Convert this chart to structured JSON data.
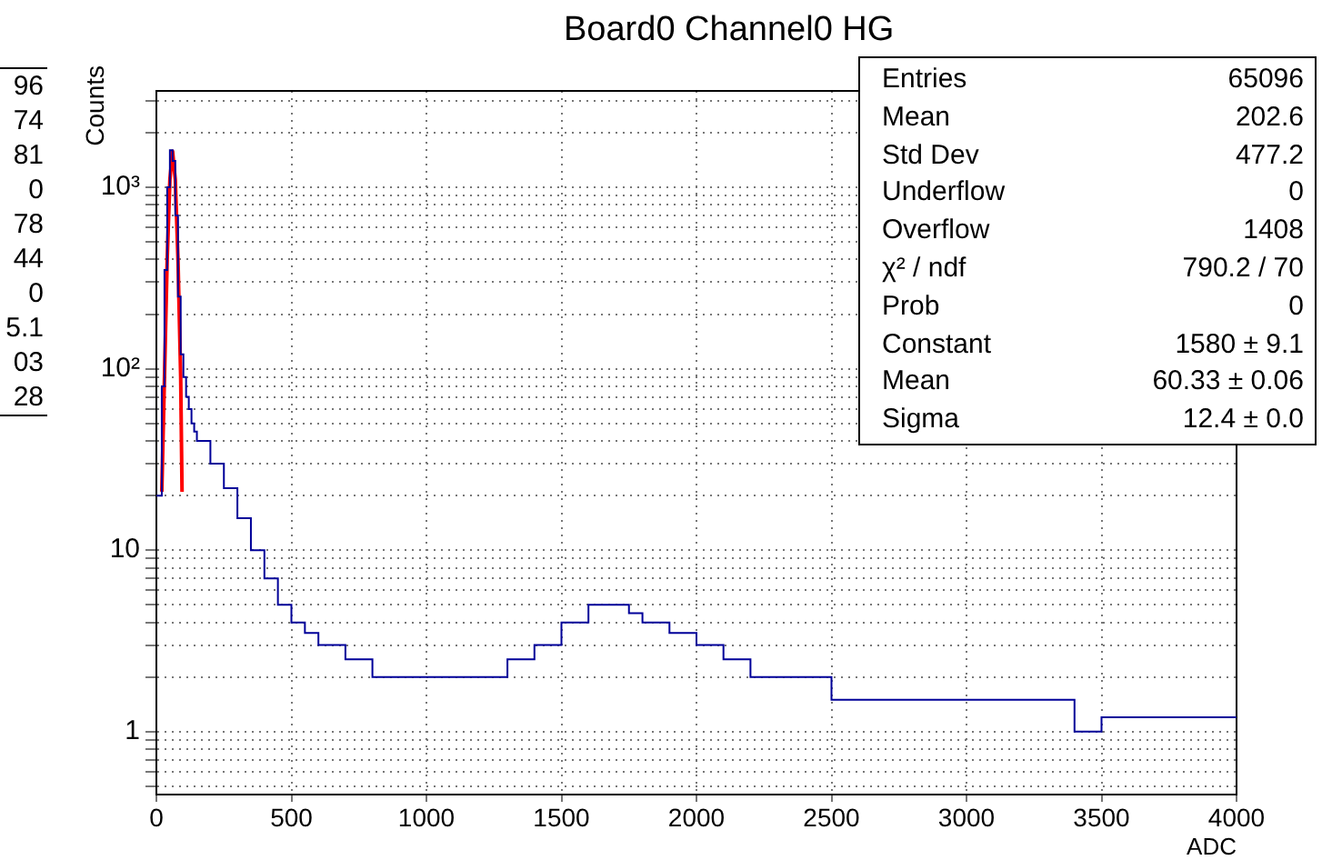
{
  "chart_data": {
    "type": "histogram",
    "title": "Board0 Channel0 HG",
    "xlabel": "ADC",
    "ylabel": "Counts",
    "series": [
      {
        "type": "histogram",
        "color": "#000099",
        "bins": [
          0,
          10,
          20,
          30,
          40,
          50,
          60,
          70,
          80,
          90,
          100,
          110,
          120,
          130,
          140,
          150,
          200,
          250,
          300,
          350,
          400,
          450,
          500,
          550,
          600,
          650,
          700,
          750,
          800,
          850,
          900,
          950,
          1000,
          1050,
          1100,
          1150,
          1200,
          1250,
          1300,
          1350,
          1400,
          1450,
          1500,
          1550,
          1600,
          1650,
          1700,
          1750,
          1800,
          1850,
          1900,
          1950,
          2000,
          2050,
          2100,
          2150,
          2200,
          2250,
          2300,
          2350,
          2400,
          2450,
          2500,
          2550,
          2600,
          2650,
          2700,
          2750,
          2800,
          2850,
          2900,
          2950,
          3000,
          3050,
          3100,
          3150,
          3200,
          3250,
          3300,
          3350,
          3400,
          3450,
          3500,
          3550,
          3600,
          3650,
          3700,
          3750,
          3800,
          3850,
          3900,
          3950,
          4000
        ],
        "values": [
          20,
          20,
          80,
          350,
          1000,
          1600,
          1400,
          700,
          250,
          120,
          90,
          70,
          60,
          50,
          45,
          40,
          30,
          22,
          15,
          10,
          7,
          5,
          4,
          3.5,
          3,
          3,
          2.5,
          2.5,
          2,
          2,
          2,
          2,
          2,
          2,
          2,
          2,
          2,
          2,
          2.5,
          2.5,
          3,
          3,
          4,
          4,
          5,
          5,
          5,
          4.5,
          4,
          4,
          3.5,
          3.5,
          3,
          3,
          2.5,
          2.5,
          2,
          2,
          2,
          2,
          2,
          2,
          1.5,
          1.5,
          1.5,
          1.5,
          1.5,
          1.5,
          1.5,
          1.5,
          1.5,
          1.5,
          1.5,
          1.5,
          1.5,
          1.5,
          1.5,
          1.5,
          1.5,
          1.5,
          1,
          1,
          1.2,
          1.2,
          1.2,
          1.2,
          1.2,
          1.2,
          1.2,
          1.2,
          1.2,
          1.2
        ]
      },
      {
        "type": "line",
        "color": "#ff0000",
        "x": [
          20,
          30,
          40,
          50,
          60,
          70,
          80,
          90,
          95
        ],
        "values": [
          21,
          90,
          400,
          1100,
          1580,
          1100,
          400,
          90,
          21
        ]
      }
    ],
    "xlim": [
      0,
      4000
    ],
    "xticks": [
      0,
      500,
      1000,
      1500,
      2000,
      2500,
      3000,
      3500,
      4000
    ],
    "ylim": [
      0.45,
      3400
    ],
    "yticks": [
      {
        "value": 0.5,
        "label": null
      },
      {
        "value": 0.6,
        "label": null
      },
      {
        "value": 0.7,
        "label": null
      },
      {
        "value": 0.8,
        "label": null
      },
      {
        "value": 0.9,
        "label": null
      },
      1,
      {
        "value": 2,
        "label": null
      },
      {
        "value": 3,
        "label": null
      },
      {
        "value": 4,
        "label": null
      },
      {
        "value": 5,
        "label": null
      },
      {
        "value": 6,
        "label": null
      },
      {
        "value": 7,
        "label": null
      },
      {
        "value": 8,
        "label": null
      },
      {
        "value": 9,
        "label": null
      },
      10,
      {
        "value": 20,
        "label": null
      },
      {
        "value": 30,
        "label": null
      },
      {
        "value": 40,
        "label": null
      },
      {
        "value": 50,
        "label": null
      },
      {
        "value": 60,
        "label": null
      },
      {
        "value": 70,
        "label": null
      },
      {
        "value": 80,
        "label": null
      },
      {
        "value": 90,
        "label": null
      },
      {
        "value": 100,
        "label": "10²"
      },
      {
        "value": 200,
        "label": null
      },
      {
        "value": 300,
        "label": null
      },
      {
        "value": 400,
        "label": null
      },
      {
        "value": 500,
        "label": null
      },
      {
        "value": 600,
        "label": null
      },
      {
        "value": 700,
        "label": null
      },
      {
        "value": 800,
        "label": null
      },
      {
        "value": 900,
        "label": null
      },
      {
        "value": 1000,
        "label": "10³"
      },
      {
        "value": 2000,
        "label": null
      },
      {
        "value": 3000,
        "label": null
      }
    ],
    "log": "y",
    "grid": true,
    "legend": false,
    "annotations": [
      "96",
      "74",
      "81",
      "0",
      "78",
      "44",
      "0",
      "5.1",
      "03",
      "28",
      "Entries",
      "65096",
      "Mean",
      "202.6",
      "Std Dev",
      "477.2",
      "Underflow",
      "0",
      "Overflow",
      "1408",
      "χ² / ndf",
      "790.2 / 70",
      "Prob",
      "0",
      "Constant",
      "1580 ± 9.1",
      "Mean",
      "60.33 ± 0.06",
      "Sigma",
      "12.4 ± 0.0"
    ]
  }
}
